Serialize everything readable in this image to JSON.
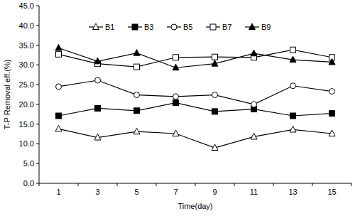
{
  "chart_data": {
    "type": "line",
    "x_label": "Time(day)",
    "y_label": "T-P Removal eff.(%)",
    "categories": [
      "1",
      "3",
      "5",
      "7",
      "9",
      "11",
      "13",
      "15"
    ],
    "ylim": [
      0,
      45
    ],
    "yticks": [
      {
        "value": 0,
        "label": "0.0"
      },
      {
        "value": 5,
        "label": "5.0"
      },
      {
        "value": 10,
        "label": "10.0"
      },
      {
        "value": 15,
        "label": "15.0"
      },
      {
        "value": 20,
        "label": "20.0"
      },
      {
        "value": 25,
        "label": "25.0"
      },
      {
        "value": 30,
        "label": "30.0"
      },
      {
        "value": 35,
        "label": "35.0"
      },
      {
        "value": 40,
        "label": "40.0"
      },
      {
        "value": 45,
        "label": "45.0"
      }
    ],
    "grid": false,
    "legend": "top",
    "series": [
      {
        "name": "B1",
        "color": "#000000",
        "marker": "triangle-open",
        "values": [
          13.8,
          11.6,
          13.1,
          12.6,
          9.0,
          11.8,
          13.6,
          12.6
        ]
      },
      {
        "name": "B3",
        "color": "#000000",
        "marker": "square",
        "values": [
          17.1,
          19.0,
          18.4,
          20.4,
          18.2,
          18.8,
          17.1,
          17.7
        ]
      },
      {
        "name": "B5",
        "color": "#000000",
        "marker": "circle-open",
        "values": [
          24.5,
          26.1,
          22.4,
          22.0,
          22.4,
          20.0,
          24.7,
          23.3
        ]
      },
      {
        "name": "B7",
        "color": "#000000",
        "marker": "square-open",
        "values": [
          32.7,
          30.3,
          29.5,
          31.9,
          32.0,
          31.9,
          33.8,
          31.9
        ]
      },
      {
        "name": "B9",
        "color": "#000000",
        "marker": "triangle",
        "values": [
          34.3,
          30.9,
          33.0,
          29.3,
          30.3,
          32.9,
          31.3,
          30.7
        ]
      }
    ]
  }
}
